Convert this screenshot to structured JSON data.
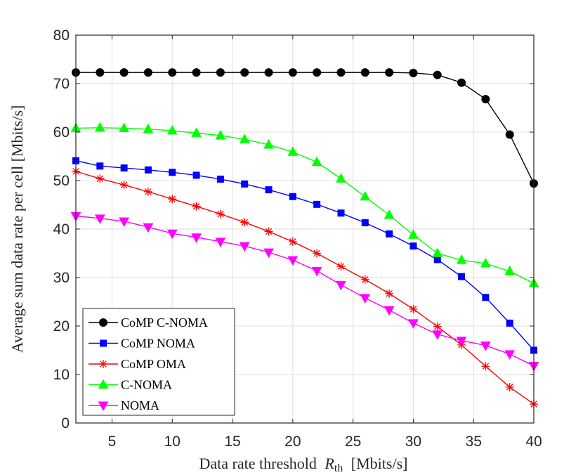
{
  "chart_data": {
    "type": "line",
    "xlabel": "Data rate threshold",
    "xlabel_symbol": "R",
    "xlabel_subscript": "th",
    "xlabel_unit": "[Mbits/s]",
    "ylabel": "Average sum data rate per cell [Mbits/s]",
    "xlim": [
      2,
      40
    ],
    "ylim": [
      0,
      80
    ],
    "xticks": [
      5,
      10,
      15,
      20,
      25,
      30,
      35,
      40
    ],
    "yticks": [
      0,
      10,
      20,
      30,
      40,
      50,
      60,
      70,
      80
    ],
    "grid": true,
    "legend_position": "bottom-left",
    "x": [
      2,
      4,
      6,
      8,
      10,
      12,
      14,
      16,
      18,
      20,
      22,
      24,
      26,
      28,
      30,
      32,
      34,
      36,
      38,
      40
    ],
    "series": [
      {
        "name": "CoMP C-NOMA",
        "color": "#000000",
        "marker": "circle",
        "values": [
          72.3,
          72.3,
          72.3,
          72.3,
          72.3,
          72.3,
          72.3,
          72.3,
          72.3,
          72.3,
          72.3,
          72.3,
          72.3,
          72.3,
          72.2,
          71.8,
          70.2,
          66.8,
          59.5,
          49.4
        ]
      },
      {
        "name": "CoMP NOMA",
        "color": "#0000ff",
        "marker": "square",
        "values": [
          54.1,
          53.0,
          52.6,
          52.2,
          51.7,
          51.1,
          50.3,
          49.3,
          48.1,
          46.7,
          45.1,
          43.3,
          41.3,
          39.0,
          36.5,
          33.7,
          30.2,
          25.9,
          20.6,
          15.0
        ]
      },
      {
        "name": "CoMP OMA",
        "color": "#ff0000",
        "marker": "asterisk",
        "values": [
          51.9,
          50.4,
          49.1,
          47.7,
          46.2,
          44.7,
          43.1,
          41.4,
          39.5,
          37.4,
          35.0,
          32.3,
          29.6,
          26.7,
          23.5,
          19.9,
          16.1,
          11.7,
          7.4,
          3.9
        ]
      },
      {
        "name": "C-NOMA",
        "color": "#00ff00",
        "marker": "triangle-up",
        "values": [
          60.8,
          60.9,
          60.8,
          60.6,
          60.3,
          59.8,
          59.3,
          58.5,
          57.4,
          55.9,
          53.8,
          50.4,
          46.7,
          42.9,
          38.8,
          35.0,
          33.6,
          32.9,
          31.3,
          28.8
        ]
      },
      {
        "name": "NOMA",
        "color": "#ff00ff",
        "marker": "triangle-down",
        "values": [
          42.7,
          42.2,
          41.6,
          40.4,
          39.1,
          38.3,
          37.4,
          36.5,
          35.2,
          33.6,
          31.4,
          28.5,
          25.8,
          23.3,
          20.6,
          18.3,
          17.0,
          16.0,
          14.2,
          11.8
        ]
      }
    ]
  }
}
